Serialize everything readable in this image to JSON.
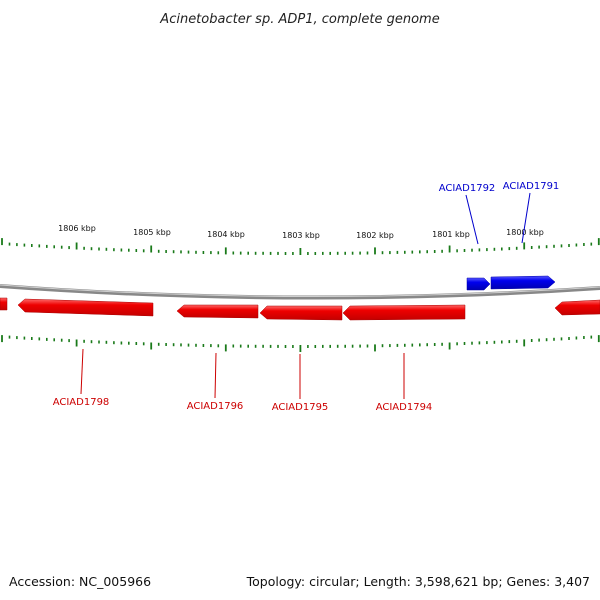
{
  "title": "Acinetobacter sp. ADP1, complete genome",
  "footer": {
    "accession": "Accession: NC_005966",
    "summary": "Topology: circular; Length: 3,598,621 bp; Genes: 3,407"
  },
  "colors": {
    "forward": "#0000ee",
    "reverse": "#ee0000",
    "tick": "#1a7a1a",
    "backbone": "#888888"
  },
  "ticks": [
    {
      "label": "1806 kbp",
      "kbp": 1806
    },
    {
      "label": "1805 kbp",
      "kbp": 1805
    },
    {
      "label": "1804 kbp",
      "kbp": 1804
    },
    {
      "label": "1803 kbp",
      "kbp": 1803
    },
    {
      "label": "1802 kbp",
      "kbp": 1802
    },
    {
      "label": "1801 kbp",
      "kbp": 1801
    },
    {
      "label": "1800 kbp",
      "kbp": 1800
    }
  ],
  "genes": [
    {
      "name": "ACIAD1791",
      "strand": "forward"
    },
    {
      "name": "ACIAD1792",
      "strand": "forward"
    },
    {
      "name": "ACIAD1794",
      "strand": "reverse"
    },
    {
      "name": "ACIAD1795",
      "strand": "reverse"
    },
    {
      "name": "ACIAD1796",
      "strand": "reverse"
    },
    {
      "name": "ACIAD1798",
      "strand": "reverse"
    }
  ]
}
